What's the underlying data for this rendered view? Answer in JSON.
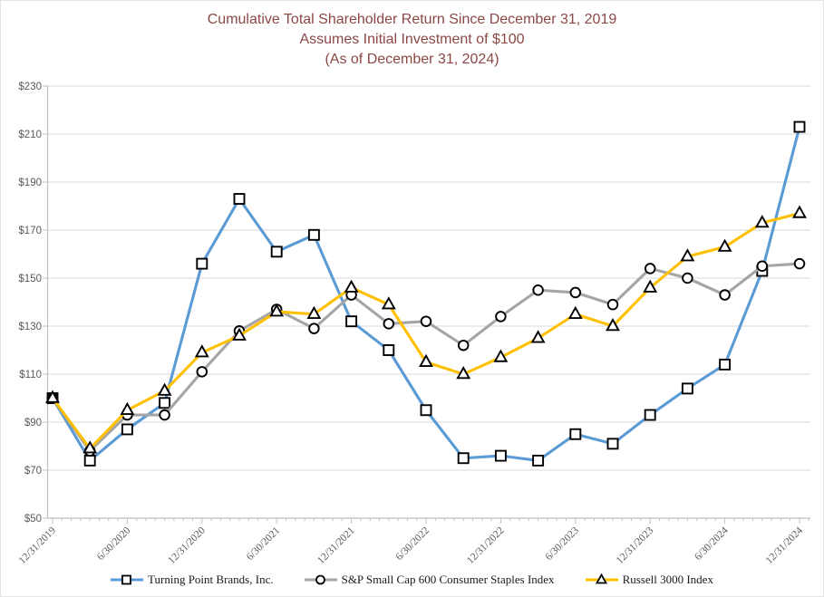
{
  "title": {
    "line1": "Cumulative Total Shareholder Return Since December 31, 2019",
    "line2": "Assumes Initial Investment of $100",
    "line3": "(As of December 31, 2024)",
    "color": "#8b4845"
  },
  "chart_data": {
    "type": "line",
    "x": [
      "12/31/2019",
      "3/31/2020",
      "6/30/2020",
      "9/30/2020",
      "12/31/2020",
      "3/31/2021",
      "6/30/2021",
      "9/30/2021",
      "12/31/2021",
      "3/31/2022",
      "6/30/2022",
      "9/30/2022",
      "12/31/2022",
      "3/31/2023",
      "6/30/2023",
      "9/30/2023",
      "12/31/2023",
      "3/31/2024",
      "6/30/2024",
      "9/30/2024",
      "12/31/2024"
    ],
    "x_tick_labels_shown": [
      "12/31/2019",
      "6/30/2020",
      "12/31/2020",
      "6/30/2021",
      "12/31/2021",
      "6/30/2022",
      "12/31/2022",
      "6/30/2023",
      "12/31/2023",
      "6/30/2024",
      "12/31/2024"
    ],
    "y_axis": {
      "min": 50,
      "max": 230,
      "step": 20,
      "tick_labels": [
        "$230",
        "$210",
        "$190",
        "$170",
        "$150",
        "$130",
        "$110",
        "$90",
        "$70",
        "$50"
      ]
    },
    "grid": true,
    "legend_position": "bottom",
    "series": [
      {
        "name": "Turning Point Brands, Inc.",
        "color": "#5B9BD5",
        "marker": "square",
        "values": [
          100,
          74,
          87,
          98,
          156,
          183,
          161,
          168,
          132,
          120,
          95,
          75,
          76,
          74,
          85,
          81,
          93,
          104,
          114,
          153,
          213
        ]
      },
      {
        "name": "S&P Small Cap 600 Consumer Staples Index",
        "color": "#A5A5A5",
        "marker": "circle",
        "values": [
          100,
          78,
          93,
          93,
          111,
          128,
          137,
          129,
          143,
          131,
          132,
          122,
          134,
          145,
          144,
          139,
          154,
          150,
          143,
          155,
          156
        ]
      },
      {
        "name": "Russell 3000 Index",
        "color": "#FFC000",
        "marker": "triangle",
        "values": [
          100,
          79,
          95,
          103,
          119,
          126,
          136,
          135,
          146,
          139,
          115,
          110,
          117,
          125,
          135,
          130,
          146,
          159,
          163,
          173,
          177
        ]
      }
    ],
    "colors": {
      "gridline": "#D9D9D9",
      "axis": "#BFBFBF",
      "tick_label": "#595959",
      "marker_stroke": "#000000",
      "marker_fill": "#FFFFFF"
    }
  }
}
